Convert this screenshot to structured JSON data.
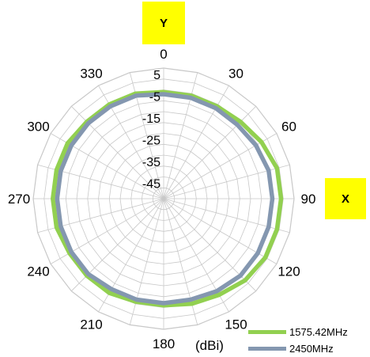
{
  "chart_data": {
    "type": "polar-line",
    "title": "",
    "unit": "(dBi)",
    "angle_labels": [
      "0",
      "30",
      "60",
      "90",
      "120",
      "150",
      "180",
      "210",
      "240",
      "270",
      "300",
      "330"
    ],
    "angle_step": 15,
    "radial_range": [
      -55,
      5
    ],
    "radial_ticks": [
      5,
      -5,
      -15,
      -25,
      -35,
      -45
    ],
    "radial_tick_labels": [
      "5",
      "-5",
      "-15",
      "-25",
      "-35",
      "-45"
    ],
    "axis_markers": {
      "y": "Y",
      "x": "X"
    },
    "grid": true,
    "legend_position": "bottom-right",
    "series": [
      {
        "name": "1575.42MHz",
        "color": "#92d050",
        "angles": [
          0,
          15,
          30,
          45,
          60,
          75,
          90,
          105,
          120,
          135,
          150,
          165,
          180,
          195,
          210,
          225,
          240,
          255,
          270,
          285,
          300,
          315,
          330,
          345
        ],
        "values": [
          -6,
          -6,
          -6,
          -5,
          -3,
          -1,
          -1,
          -1,
          -1,
          -2,
          -4,
          -5,
          -6,
          -6,
          -5,
          -5,
          -5,
          -4,
          -4,
          -4,
          -4,
          -5,
          -5,
          -5
        ]
      },
      {
        "name": "2450MHz",
        "color": "#8497b0",
        "angles": [
          0,
          15,
          30,
          45,
          60,
          75,
          90,
          105,
          120,
          135,
          150,
          165,
          180,
          195,
          210,
          225,
          240,
          255,
          270,
          285,
          300,
          315,
          330,
          345
        ],
        "values": [
          -7,
          -7,
          -7,
          -7,
          -6,
          -5,
          -5,
          -5,
          -5,
          -5,
          -6,
          -7,
          -7,
          -7,
          -7,
          -6,
          -6,
          -6,
          -6,
          -6,
          -6,
          -6,
          -6,
          -6
        ]
      }
    ]
  }
}
